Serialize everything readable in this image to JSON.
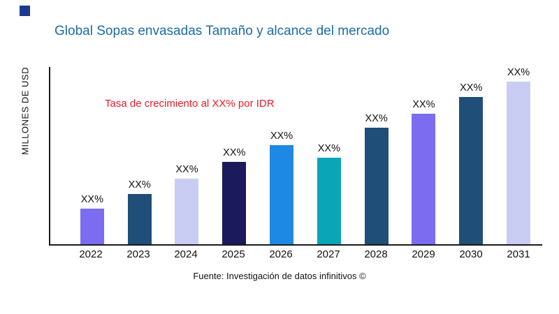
{
  "page": {
    "title": "Global Sopas envasadas Tamaño y alcance del mercado",
    "title_color": "#1c6ca6",
    "ylabel": "MILLONES DE USD",
    "annotation": "Tasa de crecimiento al XX% por IDR",
    "annotation_color": "#e8192c",
    "footer": "Fuente: Investigación de datos infinitivos ©"
  },
  "chart_data": {
    "type": "bar",
    "title": "Global Sopas envasadas Tamaño y alcance del mercado",
    "xlabel": "",
    "ylabel": "MILLONES DE USD",
    "categories": [
      "2022",
      "2023",
      "2024",
      "2025",
      "2026",
      "2027",
      "2028",
      "2029",
      "2030",
      "2031"
    ],
    "values": [
      50,
      71,
      93,
      116,
      140,
      122,
      164,
      184,
      208,
      231
    ],
    "value_units": "relative bar height (axis unlabeled, values shown as XX%)",
    "bar_labels": [
      "XX%",
      "XX%",
      "XX%",
      "XX%",
      "XX%",
      "XX%",
      "XX%",
      "XX%",
      "XX%",
      "XX%"
    ],
    "bar_colors": [
      "#7c6cf0",
      "#1f4e79",
      "#c9cdf4",
      "#1a1a5c",
      "#1e88e5",
      "#0aa6b8",
      "#1f4e79",
      "#7c6cf0",
      "#1f4e79",
      "#c9cdf4"
    ],
    "ylim": [
      0,
      250
    ],
    "grid": false,
    "legend": "none",
    "annotation": "Tasa de crecimiento al XX% por IDR"
  }
}
